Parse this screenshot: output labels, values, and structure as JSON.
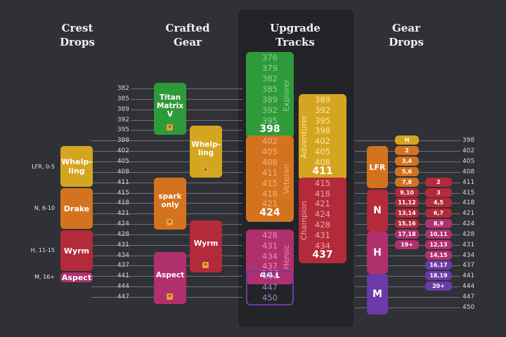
{
  "headers": {
    "crest_drops": "Crest\nDrops",
    "crafted_gear": "Crafted\nGear",
    "upgrade_tracks": "Upgrade\nTracks",
    "gear_drops": "Gear\nDrops"
  },
  "item_levels": [
    "382",
    "385",
    "389",
    "392",
    "395",
    "398",
    "402",
    "405",
    "408",
    "411",
    "415",
    "418",
    "421",
    "424",
    "428",
    "431",
    "434",
    "437",
    "441",
    "444",
    "447",
    "450"
  ],
  "crest_drops": [
    {
      "label": "LFR, 0-5",
      "crest": "Whelp-\nling",
      "color": "#d4a520"
    },
    {
      "label": "N, 6-10",
      "crest": "Drake",
      "color": "#d4731f"
    },
    {
      "label": "H, 11-15",
      "crest": "Wyrm",
      "color": "#b32a3a"
    },
    {
      "label": "M, 16+",
      "crest": "Aspect",
      "color": "#b0306e"
    }
  ],
  "crafted_gear": [
    {
      "label": "Titan\nMatrix\nV",
      "color": "#2f9a3a"
    },
    {
      "label": "Whelp-\nling",
      "color": "#d4a520"
    },
    {
      "label": "spark\nonly",
      "color": "#d4731f"
    },
    {
      "label": "Wyrm",
      "color": "#b32a3a"
    },
    {
      "label": "Aspect",
      "color": "#b0306e"
    }
  ],
  "upgrade_tracks": {
    "explorer": {
      "name": "Explorer",
      "values": [
        "376",
        "379",
        "382",
        "385",
        "389",
        "392",
        "395"
      ],
      "max": "398"
    },
    "veteran": {
      "name": "Veteran",
      "values": [
        "402",
        "405",
        "408",
        "411",
        "415",
        "418",
        "421"
      ],
      "max": "424"
    },
    "heroic": {
      "name": "Heroic",
      "values": [
        "428",
        "431",
        "434",
        "437"
      ],
      "max": "441"
    },
    "myth": {
      "values": [
        "444",
        "447",
        "450"
      ]
    },
    "adventurer": {
      "name": "Adventurer",
      "values": [
        "389",
        "392",
        "395",
        "398",
        "402",
        "405",
        "408"
      ],
      "max": "411"
    },
    "champion": {
      "name": "Champion",
      "values": [
        "415",
        "418",
        "421",
        "424",
        "428",
        "431",
        "434"
      ],
      "max": "437"
    }
  },
  "gear_drops": {
    "difficulties": [
      {
        "label": "LFR",
        "color": "#d4731f"
      },
      {
        "label": "N",
        "color": "#b32a3a"
      },
      {
        "label": "H",
        "color": "#b0306e"
      },
      {
        "label": "M",
        "color": "#6b3aa8"
      }
    ],
    "column_a": [
      {
        "label": "H",
        "color": "#d4a520"
      },
      {
        "label": "2",
        "color": "#d4731f"
      },
      {
        "label": "3,4",
        "color": "#d4731f"
      },
      {
        "label": "5,6",
        "color": "#d4731f"
      },
      {
        "label": "7,8",
        "color": "#d4731f"
      },
      {
        "label": "9,10",
        "color": "#b32a3a"
      },
      {
        "label": "11,12",
        "color": "#b32a3a"
      },
      {
        "label": "13,14",
        "color": "#b32a3a"
      },
      {
        "label": "15,16",
        "color": "#b32a3a"
      },
      {
        "label": "17,18",
        "color": "#b0306e"
      },
      {
        "label": "19+",
        "color": "#b0306e"
      }
    ],
    "column_b": [
      {
        "label": "2",
        "color": "#b32a3a"
      },
      {
        "label": "3",
        "color": "#b32a3a"
      },
      {
        "label": "4,5",
        "color": "#b32a3a"
      },
      {
        "label": "6,7",
        "color": "#b32a3a"
      },
      {
        "label": "8,9",
        "color": "#b0306e"
      },
      {
        "label": "10,11",
        "color": "#b0306e"
      },
      {
        "label": "12,13",
        "color": "#b0306e"
      },
      {
        "label": "14,15",
        "color": "#b0306e"
      },
      {
        "label": "16,17",
        "color": "#6b3aa8"
      },
      {
        "label": "18,19",
        "color": "#6b3aa8"
      },
      {
        "label": "20+",
        "color": "#6b3aa8"
      }
    ]
  },
  "colors": {
    "background": "#2f3136",
    "panel": "#232427",
    "explorer": "#2f9a3a",
    "adventurer": "#d4a520",
    "veteran": "#d4731f",
    "champion": "#b32a3a",
    "heroic": "#b0306e",
    "myth": "#6b3aa8"
  }
}
